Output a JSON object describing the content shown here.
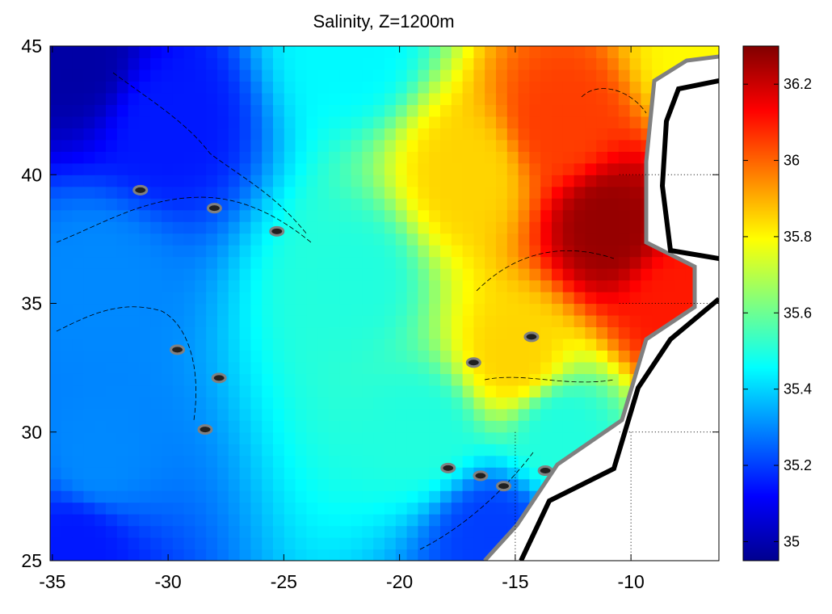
{
  "chart_data": {
    "type": "heatmap",
    "title": "Salinity, Z=1200m",
    "xlabel": "",
    "ylabel": "",
    "xlim": [
      -35.1,
      -6.2
    ],
    "ylim": [
      25,
      45
    ],
    "xticks": [
      -35,
      -30,
      -25,
      -20,
      -15,
      -10
    ],
    "xtick_labels": [
      "-35",
      "-30",
      "-25",
      "-20",
      "-15",
      "-10"
    ],
    "yticks": [
      25,
      30,
      35,
      40,
      45
    ],
    "ytick_labels": [
      "25",
      "30",
      "35",
      "40",
      "45"
    ],
    "colorbar": {
      "colormap": "jet",
      "clim": [
        34.95,
        36.3
      ],
      "ticks": [
        35,
        35.2,
        35.4,
        35.6,
        35.8,
        36,
        36.2
      ],
      "tick_labels": [
        "35",
        "35.2",
        "35.4",
        "35.6",
        "35.8",
        "36",
        "36.2"
      ]
    },
    "field_samples": [
      {
        "lon": -34,
        "lat": 44.5,
        "salinity": 35.0
      },
      {
        "lon": -30,
        "lat": 42,
        "salinity": 35.15
      },
      {
        "lon": -33,
        "lat": 36,
        "salinity": 35.3
      },
      {
        "lon": -33,
        "lat": 29,
        "salinity": 35.3
      },
      {
        "lon": -34,
        "lat": 25.5,
        "salinity": 35.15
      },
      {
        "lon": -22,
        "lat": 45,
        "salinity": 35.45
      },
      {
        "lon": -22,
        "lat": 36,
        "salinity": 35.5
      },
      {
        "lon": -19,
        "lat": 30,
        "salinity": 35.5
      },
      {
        "lon": -17,
        "lat": 40,
        "salinity": 35.85
      },
      {
        "lon": -15,
        "lat": 33,
        "salinity": 35.85
      },
      {
        "lon": -13,
        "lat": 42,
        "salinity": 36.05
      },
      {
        "lon": -11,
        "lat": 38,
        "salinity": 36.27
      },
      {
        "lon": -8,
        "lat": 35,
        "salinity": 36.1
      },
      {
        "lon": -13,
        "lat": 30,
        "salinity": 35.5
      },
      {
        "lon": -16,
        "lat": 26,
        "salinity": 35.2
      },
      {
        "lon": -7,
        "lat": 44.5,
        "salinity": 35.8
      }
    ],
    "grid": {
      "dotted_lon": [
        -15,
        -10
      ],
      "dotted_lat": [
        30,
        35,
        40
      ]
    },
    "colors": {
      "coast_outer": "#000000",
      "coast_inner": "#808080",
      "land": "#ffffff"
    }
  }
}
